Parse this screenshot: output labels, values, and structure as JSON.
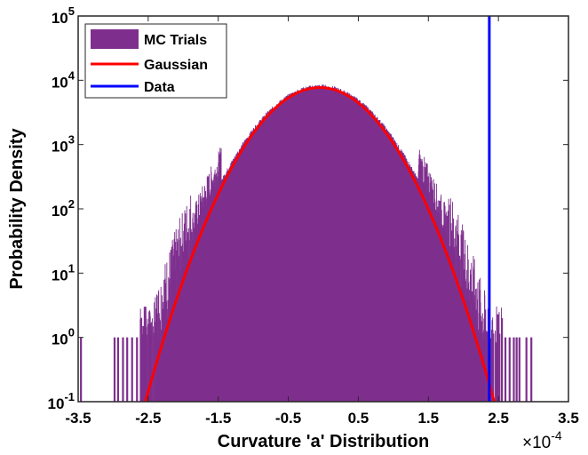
{
  "chart_data": {
    "type": "histogram",
    "xlabel": "Curvature 'a' Distribution",
    "ylabel": "Probability Density",
    "x_multiplier": "×10",
    "x_multiplier_exp": "-4",
    "xlim": [
      -3.5,
      3.5
    ],
    "ylim": [
      0.1,
      100000
    ],
    "yscale": "log",
    "x_ticks": [
      "-3.5",
      "-2.5",
      "-1.5",
      "-0.5",
      "0.5",
      "1.5",
      "2.5",
      "3.5"
    ],
    "y_ticks": [
      {
        "base": "10",
        "exp": "-1",
        "value": 0.1
      },
      {
        "base": "10",
        "exp": "0",
        "value": 1
      },
      {
        "base": "10",
        "exp": "1",
        "value": 10
      },
      {
        "base": "10",
        "exp": "2",
        "value": 100
      },
      {
        "base": "10",
        "exp": "3",
        "value": 1000
      },
      {
        "base": "10",
        "exp": "4",
        "value": 10000
      },
      {
        "base": "10",
        "exp": "5",
        "value": 100000
      }
    ],
    "grid": false,
    "legend_position": "top-left",
    "series": [
      {
        "name": "MC Trials",
        "kind": "histogram",
        "color": "#7e2f8e",
        "gaussian_envelope": {
          "mean": -0.05,
          "sigma": 0.54,
          "peak": 7500
        },
        "outlier_bins": [
          {
            "x": -3.46,
            "y": 1
          },
          {
            "x": -2.98,
            "y": 1
          },
          {
            "x": -2.93,
            "y": 1
          },
          {
            "x": -2.86,
            "y": 1
          },
          {
            "x": -2.8,
            "y": 1
          },
          {
            "x": -2.73,
            "y": 1
          },
          {
            "x": -2.66,
            "y": 1
          },
          {
            "x": -2.6,
            "y": 2
          },
          {
            "x": -2.57,
            "y": 1.5
          },
          {
            "x": -2.54,
            "y": 3
          },
          {
            "x": 2.55,
            "y": 2
          },
          {
            "x": 2.6,
            "y": 1
          },
          {
            "x": 2.66,
            "y": 1
          },
          {
            "x": 2.72,
            "y": 1
          },
          {
            "x": 2.76,
            "y": 1
          },
          {
            "x": 2.8,
            "y": 1
          },
          {
            "x": 2.9,
            "y": 1
          },
          {
            "x": 2.97,
            "y": 1
          }
        ]
      },
      {
        "name": "Gaussian",
        "kind": "line",
        "color": "#ff0000",
        "mean": -0.05,
        "sigma": 0.525,
        "peak": 7700
      },
      {
        "name": "Data",
        "kind": "vline",
        "color": "#0000ff",
        "x": 2.37
      }
    ]
  }
}
